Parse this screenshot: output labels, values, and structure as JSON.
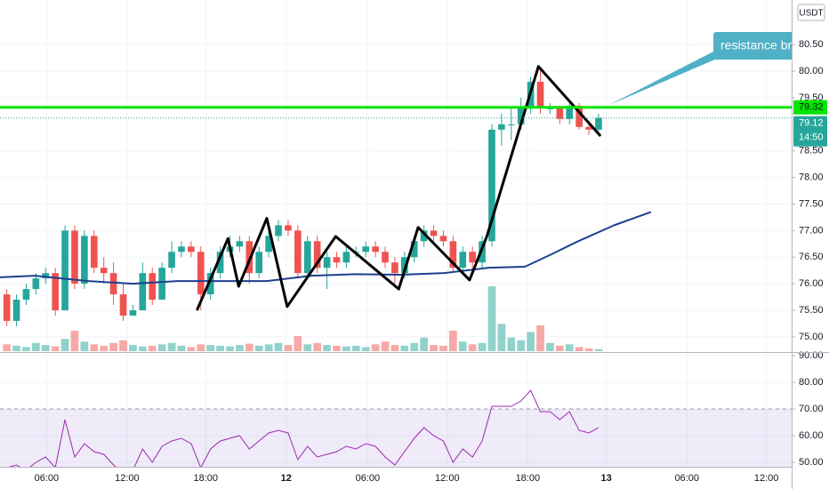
{
  "chart_data": [
    {
      "type": "candlestick",
      "currency": "USDT",
      "open": [
        75.8,
        75.3,
        75.7,
        75.9,
        76.1,
        76.2,
        75.5,
        77.0,
        76.0,
        76.9,
        76.3,
        76.2,
        75.8,
        75.4,
        75.5,
        76.2,
        75.7,
        76.3,
        76.6,
        76.7,
        76.6,
        75.8,
        76.2,
        76.6,
        76.7,
        76.8,
        76.2,
        76.6,
        76.9,
        77.1,
        77.0,
        76.2,
        76.8,
        76.3,
        76.5,
        76.4,
        76.6,
        76.6,
        76.7,
        76.6,
        76.4,
        76.2,
        76.5,
        76.8,
        77.0,
        76.9,
        76.8,
        76.3,
        76.6,
        76.4,
        76.8,
        78.9,
        79.0,
        79.0,
        79.3,
        79.8,
        79.3,
        79.3,
        79.1,
        79.35,
        78.95,
        78.9
      ],
      "high": [
        75.9,
        75.8,
        76.0,
        76.2,
        76.3,
        76.3,
        77.1,
        77.1,
        77.0,
        77.0,
        76.5,
        76.4,
        76.0,
        75.6,
        76.4,
        76.3,
        76.4,
        76.8,
        76.8,
        76.8,
        76.7,
        76.3,
        76.7,
        76.9,
        76.9,
        76.9,
        76.7,
        77.0,
        77.2,
        77.2,
        77.1,
        76.9,
        76.9,
        76.6,
        76.6,
        76.7,
        76.7,
        76.8,
        76.8,
        76.7,
        76.5,
        76.6,
        76.9,
        77.1,
        77.1,
        77.0,
        76.9,
        76.7,
        76.7,
        76.9,
        79.0,
        79.2,
        79.3,
        79.5,
        79.9,
        80.05,
        79.4,
        79.35,
        79.4,
        79.4,
        79.0,
        79.2
      ],
      "low": [
        75.2,
        75.2,
        75.6,
        75.8,
        76.0,
        75.4,
        75.5,
        75.9,
        75.9,
        76.2,
        76.0,
        75.6,
        75.3,
        75.4,
        75.5,
        75.6,
        75.7,
        76.2,
        76.5,
        76.5,
        75.5,
        75.7,
        76.1,
        76.5,
        76.6,
        76.0,
        76.1,
        76.5,
        76.8,
        76.9,
        76.1,
        76.1,
        76.2,
        75.9,
        76.3,
        76.3,
        76.5,
        76.5,
        76.5,
        76.3,
        76.0,
        76.1,
        76.4,
        76.7,
        76.8,
        76.7,
        76.2,
        76.2,
        76.2,
        76.3,
        76.7,
        78.6,
        78.7,
        78.9,
        79.2,
        79.2,
        79.2,
        79.0,
        79.0,
        78.9,
        78.8,
        78.85
      ],
      "close": [
        75.3,
        75.7,
        75.9,
        76.1,
        76.2,
        75.5,
        77.0,
        76.0,
        76.9,
        76.3,
        76.2,
        75.8,
        75.4,
        75.5,
        76.2,
        75.7,
        76.3,
        76.6,
        76.7,
        76.6,
        75.8,
        76.2,
        76.6,
        76.7,
        76.8,
        76.2,
        76.6,
        76.9,
        77.1,
        77.0,
        76.2,
        76.8,
        76.3,
        76.5,
        76.4,
        76.6,
        76.6,
        76.7,
        76.6,
        76.4,
        76.2,
        76.5,
        76.8,
        77.0,
        76.9,
        76.8,
        76.3,
        76.6,
        76.4,
        76.8,
        78.9,
        79.0,
        79.0,
        79.3,
        79.8,
        79.3,
        79.3,
        79.1,
        79.35,
        78.95,
        78.9,
        79.12
      ],
      "volume": [
        10,
        8,
        6,
        12,
        9,
        7,
        18,
        30,
        14,
        10,
        8,
        12,
        16,
        9,
        7,
        8,
        10,
        12,
        8,
        6,
        10,
        9,
        8,
        7,
        9,
        11,
        8,
        10,
        12,
        9,
        22,
        10,
        12,
        9,
        8,
        7,
        8,
        6,
        10,
        14,
        9,
        8,
        12,
        20,
        9,
        8,
        30,
        14,
        10,
        12,
        95,
        40,
        20,
        16,
        28,
        38,
        12,
        8,
        10,
        6,
        4,
        3
      ],
      "up_color": "#26a69a",
      "down_color": "#ef5350",
      "xlim": [
        -0.7,
        80.9
      ],
      "xticks": [
        {
          "value": 4.1,
          "label": "06:00"
        },
        {
          "value": 12.4,
          "label": "12:00"
        },
        {
          "value": 20.5,
          "label": "18:00"
        },
        28.8,
        {
          "value": 37.2,
          "label": "06:00"
        },
        {
          "value": 45.4,
          "label": "12:00"
        },
        {
          "value": 53.7,
          "label": "18:00"
        },
        61.8,
        {
          "value": 70.1,
          "label": "06:00"
        },
        {
          "value": 78.3,
          "label": "12:00"
        }
      ],
      "xtick_labels": [
        null,
        null,
        null,
        "12",
        null,
        null,
        null,
        "13",
        null,
        null
      ],
      "ylim": [
        74.73,
        81.34
      ],
      "yticks": [
        {
          "value": 75,
          "label": "75.00"
        },
        {
          "value": 75.5,
          "label": "75.50"
        },
        {
          "value": 76,
          "label": "76.00"
        },
        {
          "value": 76.5,
          "label": "76.50"
        },
        {
          "value": 77,
          "label": "77.00"
        },
        {
          "value": 77.5,
          "label": "77.50"
        },
        {
          "value": 78,
          "label": "78.00"
        },
        {
          "value": 78.5,
          "label": "78.50"
        },
        {
          "value": 79.5,
          "label": "79.50"
        },
        {
          "value": 80,
          "label": "80.00"
        },
        {
          "value": 80.5,
          "label": "80.50"
        }
      ],
      "grid": true,
      "moving_average": {
        "color": "#1e3f8f",
        "x": [
          -0.7,
          2.9,
          8.4,
          13.0,
          17.6,
          22.2,
          26.8,
          31.4,
          36.0,
          40.6,
          45.1,
          49.7,
          53.4,
          56.1,
          58.9,
          62.6,
          66.4
        ],
        "values": [
          76.12,
          76.15,
          76.05,
          76.0,
          76.05,
          76.05,
          76.05,
          76.15,
          76.18,
          76.17,
          76.2,
          76.3,
          76.32,
          76.55,
          76.8,
          77.1,
          77.35
        ]
      },
      "pattern": {
        "color": "#000000",
        "x": [
          19.6,
          22.8,
          23.9,
          26.8,
          28.9,
          33.9,
          40.4,
          42.4,
          47.7,
          49.5,
          54.8,
          61.2
        ],
        "values": [
          75.5,
          76.85,
          75.95,
          77.23,
          75.57,
          76.89,
          75.9,
          77.06,
          76.07,
          76.9,
          80.09,
          78.78
        ]
      },
      "resistance": {
        "value": 79.32,
        "color": "#00e600"
      },
      "last_price": 79.12,
      "countdown": "14:50",
      "annotation": "resistance bre"
    },
    {
      "type": "line",
      "color": "#9c27b0",
      "values": [
        48,
        49,
        47,
        50,
        52,
        48,
        66,
        52,
        57,
        54,
        53,
        49,
        46,
        47,
        55,
        50,
        56,
        58,
        59,
        57,
        48,
        55,
        58,
        59,
        60,
        55,
        58,
        61,
        62,
        61,
        51,
        56,
        52,
        53,
        54,
        56,
        55,
        57,
        56,
        52,
        49,
        54,
        59,
        63,
        60,
        58,
        50,
        55,
        52,
        58,
        71,
        71,
        71,
        73,
        77,
        69,
        69,
        66,
        69,
        62,
        61,
        63
      ],
      "ylim": [
        48.33,
        90.67
      ],
      "yticks": [
        {
          "value": 50,
          "label": "50.00"
        },
        {
          "value": 60,
          "label": "60.00"
        },
        {
          "value": 70,
          "label": "70.00"
        },
        {
          "value": 80,
          "label": "80.00"
        },
        {
          "value": 90,
          "label": "90.00"
        }
      ],
      "overbought": 70
    }
  ]
}
